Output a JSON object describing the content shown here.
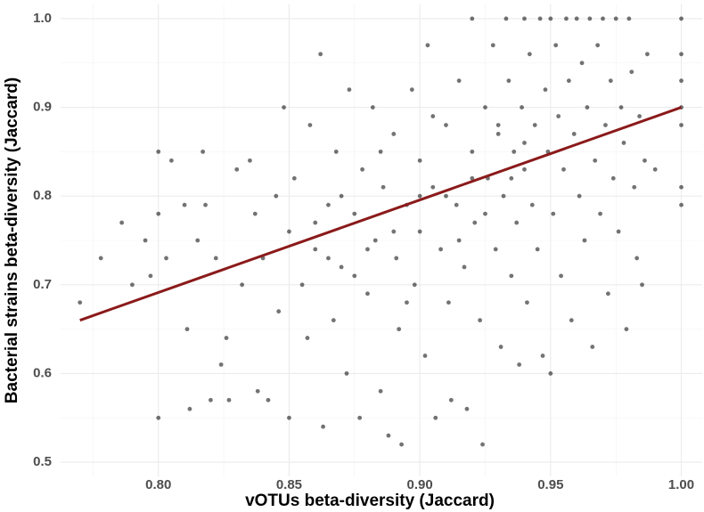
{
  "chart_data": {
    "type": "scatter",
    "xlabel": "vOTUs beta-diversity (Jaccard)",
    "ylabel": "Bacterial strains beta-diversity (Jaccard)",
    "xlim": [
      0.7626,
      1.008
    ],
    "ylim": [
      0.484,
      1.016
    ],
    "xticks": [
      {
        "value": 0.8,
        "label": "0.80"
      },
      {
        "value": 0.85,
        "label": "0.85"
      },
      {
        "value": 0.9,
        "label": "0.90"
      },
      {
        "value": 0.95,
        "label": "0.95"
      },
      {
        "value": 1,
        "label": "1.00"
      }
    ],
    "yticks": [
      0.5,
      0.6,
      0.7,
      0.8,
      0.9,
      {
        "value": 1,
        "label": "1.0"
      }
    ],
    "grid": true,
    "minor_grid": true,
    "color": "#000000",
    "x": [
      0.77,
      0.778,
      0.786,
      0.79,
      0.795,
      0.797,
      0.8,
      0.8,
      0.8,
      0.803,
      0.805,
      0.81,
      0.811,
      0.812,
      0.815,
      0.817,
      0.818,
      0.82,
      0.822,
      0.824,
      0.826,
      0.827,
      0.83,
      0.832,
      0.835,
      0.837,
      0.838,
      0.84,
      0.842,
      0.845,
      0.846,
      0.848,
      0.85,
      0.85,
      0.852,
      0.855,
      0.857,
      0.858,
      0.86,
      0.862,
      0.863,
      0.865,
      0.867,
      0.868,
      0.87,
      0.872,
      0.873,
      0.875,
      0.877,
      0.878,
      0.88,
      0.882,
      0.883,
      0.885,
      0.886,
      0.888,
      0.89,
      0.891,
      0.892,
      0.893,
      0.895,
      0.897,
      0.898,
      0.9,
      0.9,
      0.902,
      0.903,
      0.905,
      0.906,
      0.908,
      0.91,
      0.911,
      0.912,
      0.914,
      0.915,
      0.917,
      0.918,
      0.92,
      0.92,
      0.921,
      0.923,
      0.924,
      0.925,
      0.926,
      0.928,
      0.929,
      0.93,
      0.931,
      0.932,
      0.933,
      0.934,
      0.935,
      0.936,
      0.937,
      0.938,
      0.939,
      0.94,
      0.94,
      0.941,
      0.942,
      0.943,
      0.944,
      0.945,
      0.946,
      0.947,
      0.948,
      0.949,
      0.95,
      0.95,
      0.951,
      0.952,
      0.953,
      0.954,
      0.955,
      0.956,
      0.957,
      0.958,
      0.959,
      0.96,
      0.961,
      0.962,
      0.963,
      0.964,
      0.965,
      0.966,
      0.967,
      0.968,
      0.969,
      0.97,
      0.971,
      0.972,
      0.973,
      0.974,
      0.975,
      0.976,
      0.977,
      0.978,
      0.979,
      0.98,
      0.981,
      0.982,
      0.983,
      0.984,
      0.985,
      0.986,
      0.987,
      0.99,
      1,
      1,
      1,
      1,
      1,
      1,
      1,
      0.93,
      0.91,
      0.89,
      0.87,
      0.88,
      0.9,
      0.92,
      0.94,
      0.86,
      0.895,
      0.915,
      0.925,
      0.935,
      0.905,
      0.885,
      0.875,
      0.865
    ],
    "values": [
      0.68,
      0.73,
      0.77,
      0.7,
      0.75,
      0.71,
      0.85,
      0.78,
      0.55,
      0.73,
      0.84,
      0.79,
      0.65,
      0.56,
      0.75,
      0.85,
      0.79,
      0.57,
      0.73,
      0.61,
      0.64,
      0.57,
      0.83,
      0.7,
      0.84,
      0.78,
      0.58,
      0.73,
      0.57,
      0.8,
      0.67,
      0.9,
      0.55,
      0.76,
      0.82,
      0.7,
      0.64,
      0.88,
      0.74,
      0.96,
      0.54,
      0.79,
      0.66,
      0.85,
      0.72,
      0.6,
      0.92,
      0.78,
      0.55,
      0.83,
      0.69,
      0.9,
      0.75,
      0.58,
      0.81,
      0.53,
      0.87,
      0.73,
      0.65,
      0.52,
      0.79,
      0.92,
      0.7,
      0.84,
      0.76,
      0.62,
      0.97,
      0.81,
      0.55,
      0.74,
      0.88,
      0.68,
      0.57,
      0.79,
      0.93,
      0.72,
      0.56,
      0.85,
      1.0,
      0.77,
      0.66,
      0.52,
      0.9,
      0.82,
      0.97,
      0.74,
      0.87,
      0.63,
      0.8,
      1.0,
      0.93,
      0.71,
      0.85,
      0.77,
      0.61,
      0.9,
      1.0,
      0.83,
      0.68,
      0.96,
      0.79,
      0.88,
      0.74,
      1.0,
      0.62,
      0.92,
      0.85,
      0.6,
      1.0,
      0.78,
      0.97,
      0.89,
      0.71,
      0.83,
      1.0,
      0.93,
      0.66,
      0.87,
      1.0,
      0.8,
      0.95,
      0.75,
      0.9,
      1.0,
      0.63,
      0.84,
      0.97,
      0.78,
      1.0,
      0.88,
      0.69,
      0.93,
      0.82,
      1.0,
      0.76,
      0.9,
      0.86,
      0.65,
      1.0,
      0.94,
      0.81,
      0.73,
      0.89,
      0.7,
      0.84,
      0.96,
      0.83,
      1.0,
      0.96,
      0.93,
      0.88,
      0.81,
      0.79,
      0.9,
      0.88,
      0.8,
      0.76,
      0.8,
      0.74,
      0.8,
      0.82,
      0.86,
      0.77,
      0.68,
      0.75,
      0.78,
      0.82,
      0.89,
      0.85,
      0.71,
      0.73
    ],
    "trend": {
      "type": "line",
      "color": "#8b1a1a",
      "x": [
        0.77,
        1.0
      ],
      "values": [
        0.66,
        0.9
      ]
    }
  }
}
